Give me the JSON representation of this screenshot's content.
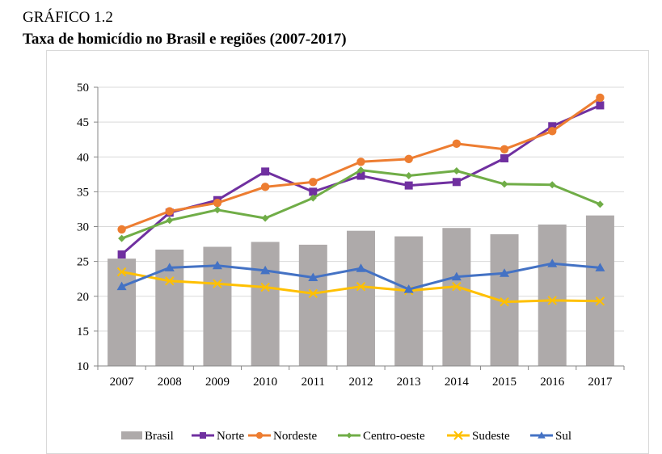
{
  "figure": {
    "caption": "GRÁFICO 1.2",
    "title": "Taxa de homicídio no Brasil e regiões (2007-2017)"
  },
  "chart_data": {
    "type": "bar+line",
    "title": "Taxa de homicídio no Brasil e regiões (2007-2017)",
    "xlabel": "",
    "ylabel": "",
    "ylim": [
      10,
      50
    ],
    "yticks": [
      10,
      15,
      20,
      25,
      30,
      35,
      40,
      45,
      50
    ],
    "grid": true,
    "legend_position": "bottom",
    "categories": [
      "2007",
      "2008",
      "2009",
      "2010",
      "2011",
      "2012",
      "2013",
      "2014",
      "2015",
      "2016",
      "2017"
    ],
    "series": [
      {
        "name": "Brasil",
        "kind": "bar",
        "color": "#aeaaaa",
        "marker": "none",
        "values": [
          25.4,
          26.7,
          27.1,
          27.8,
          27.4,
          29.4,
          28.6,
          29.8,
          28.9,
          30.3,
          31.6
        ]
      },
      {
        "name": "Norte",
        "kind": "line",
        "color": "#7030a0",
        "marker": "square",
        "values": [
          26.0,
          32.0,
          33.8,
          37.9,
          35.0,
          37.3,
          35.9,
          36.4,
          39.8,
          44.4,
          47.4
        ]
      },
      {
        "name": "Nordeste",
        "kind": "line",
        "color": "#ed7d31",
        "marker": "circle",
        "values": [
          29.6,
          32.2,
          33.4,
          35.7,
          36.4,
          39.3,
          39.7,
          41.9,
          41.1,
          43.7,
          48.5
        ]
      },
      {
        "name": "Centro-oeste",
        "kind": "line",
        "color": "#70ad47",
        "marker": "diamond",
        "values": [
          28.3,
          30.9,
          32.4,
          31.2,
          34.1,
          38.1,
          37.3,
          38.0,
          36.1,
          36.0,
          33.2
        ]
      },
      {
        "name": "Sudeste",
        "kind": "line",
        "color": "#ffc000",
        "marker": "x",
        "values": [
          23.5,
          22.2,
          21.8,
          21.3,
          20.4,
          21.4,
          20.8,
          21.4,
          19.2,
          19.4,
          19.3
        ]
      },
      {
        "name": "Sul",
        "kind": "line",
        "color": "#4472c4",
        "marker": "triangle",
        "values": [
          21.4,
          24.1,
          24.4,
          23.7,
          22.7,
          24.0,
          21.0,
          22.8,
          23.3,
          24.7,
          24.1
        ]
      }
    ]
  }
}
